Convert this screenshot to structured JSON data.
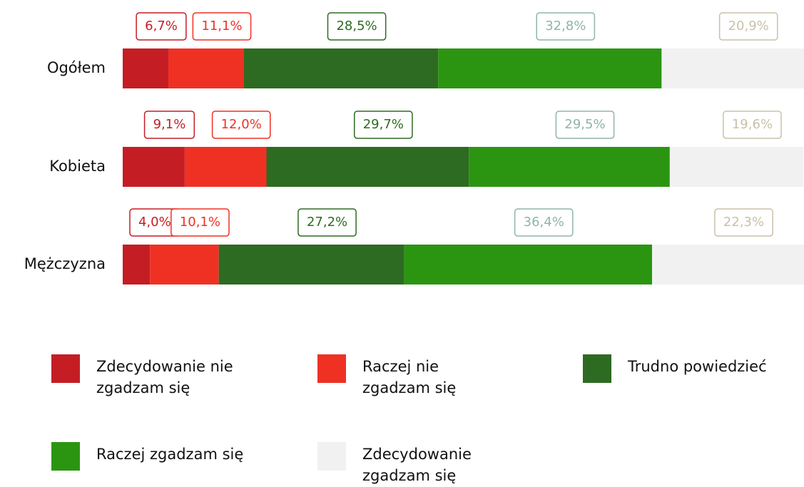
{
  "chart_data": {
    "type": "stacked_bar_horizontal",
    "categories": [
      "Ogółem",
      "Kobieta",
      "Mężczyzna"
    ],
    "xlim": [
      0,
      100
    ],
    "series": [
      {
        "name": "Zdecydowanie nie zgadzam się",
        "color": "#c41e24",
        "label_color": "#c41e24",
        "values": [
          6.7,
          9.1,
          4.0
        ],
        "value_labels": [
          "6,7%",
          "9,1%",
          "4,0%"
        ]
      },
      {
        "name": "Raczej nie zgadzam się",
        "color": "#ef3124",
        "label_color": "#ef3124",
        "values": [
          11.1,
          12.0,
          10.1
        ],
        "value_labels": [
          "11,1%",
          "12,0%",
          "10,1%"
        ]
      },
      {
        "name": "Trudno powiedzieć",
        "color": "#2e6b22",
        "label_color": "#2e6b22",
        "values": [
          28.5,
          29.7,
          27.2
        ],
        "value_labels": [
          "28,5%",
          "29,7%",
          "27,2%"
        ]
      },
      {
        "name": "Raczej zgadzam się",
        "color": "#2b9512",
        "label_color": "#8fb5a8",
        "values": [
          32.8,
          29.5,
          36.4
        ],
        "value_labels": [
          "32,8%",
          "29,5%",
          "36,4%"
        ]
      },
      {
        "name": "Zdecydowanie zgadzam się",
        "color": "#f1f1f1",
        "label_color": "#c9c1a8",
        "values": [
          20.9,
          19.6,
          22.3
        ],
        "value_labels": [
          "20,9%",
          "19,6%",
          "22,3%"
        ]
      }
    ]
  }
}
